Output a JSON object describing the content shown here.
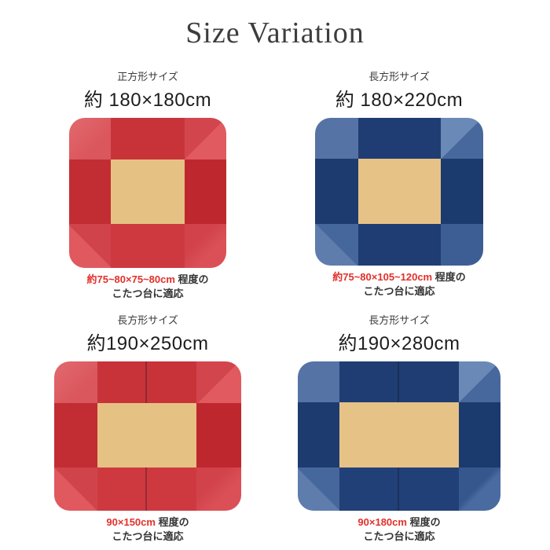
{
  "page": {
    "title": "Size Variation",
    "background": "#ffffff"
  },
  "colors": {
    "caption_highlight_red": "#e2302a",
    "rug_red_dark": "#c22c33",
    "rug_red_mid": "#c8333a",
    "rug_red_light": "#dd5f64",
    "rug_blue_dark": "#1c3a6e",
    "rug_blue_mid": "#1f3d72",
    "rug_blue_light": "#5573a5",
    "rug_center_beige": "#e5c184"
  },
  "variations": [
    {
      "type_label": "正方形サイズ",
      "size_label": "約 180×180cm",
      "caption_red": "約75~80×75~80cm",
      "caption_black": " 程度の",
      "caption_line2": "こたつ台に適応",
      "rug_color": "red",
      "rug_size": "180x180"
    },
    {
      "type_label": "長方形サイズ",
      "size_label": "約 180×220cm",
      "caption_red": "約75~80×105~120cm",
      "caption_black": " 程度の",
      "caption_line2": "こたつ台に適応",
      "rug_color": "navy",
      "rug_size": "180x220"
    },
    {
      "type_label": "長方形サイズ",
      "size_label": "約190×250cm",
      "caption_red": "90×150cm",
      "caption_black": " 程度の",
      "caption_line2": "こたつ台に適応",
      "rug_color": "red",
      "rug_size": "190x250"
    },
    {
      "type_label": "長方形サイズ",
      "size_label": "約190×280cm",
      "caption_red": "90×180cm",
      "caption_black": " 程度の",
      "caption_line2": "こたつ台に適応",
      "rug_color": "navy",
      "rug_size": "190x280"
    }
  ]
}
